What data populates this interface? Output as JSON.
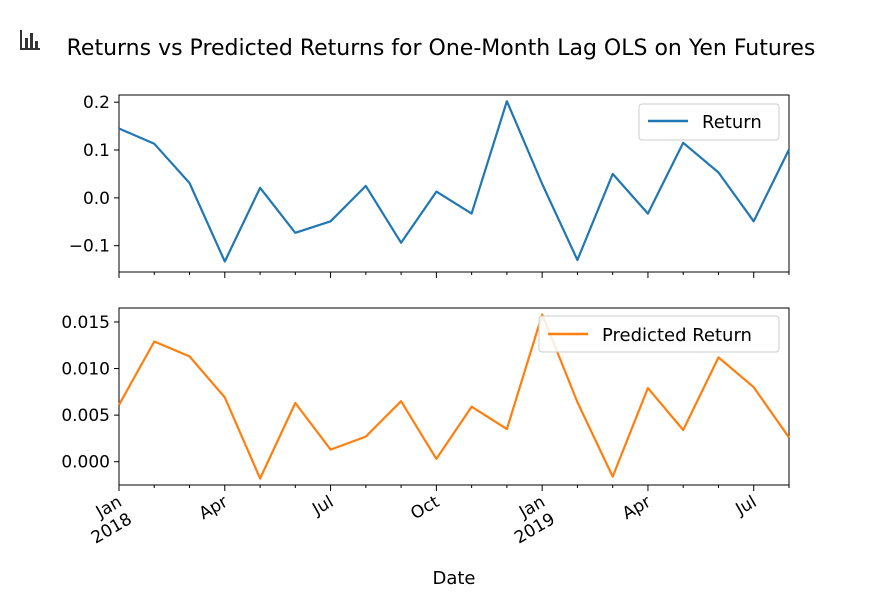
{
  "figure": {
    "title": "Returns vs Predicted Returns for One-Month Lag OLS on Yen Futures",
    "icon": "bar-chart-icon"
  },
  "chart_data": [
    {
      "type": "line",
      "x": [
        "2018-01",
        "2018-02",
        "2018-03",
        "2018-04",
        "2018-05",
        "2018-06",
        "2018-07",
        "2018-08",
        "2018-09",
        "2018-10",
        "2018-11",
        "2018-12",
        "2019-01",
        "2019-02",
        "2019-03",
        "2019-04",
        "2019-05",
        "2019-06",
        "2019-07",
        "2019-08"
      ],
      "series": [
        {
          "name": "Return",
          "color": "#1f77b4",
          "values": [
            0.145,
            0.113,
            0.031,
            -0.133,
            0.021,
            -0.073,
            -0.049,
            0.025,
            -0.094,
            0.013,
            -0.033,
            0.202,
            0.029,
            -0.13,
            0.05,
            -0.033,
            0.115,
            0.053,
            -0.049,
            0.101
          ]
        }
      ],
      "ylim": [
        -0.155,
        0.215
      ],
      "yticks": [
        {
          "value": 0.2,
          "label": "0.2"
        },
        {
          "value": 0.1,
          "label": "0.1"
        },
        {
          "value": 0.0,
          "label": "0.0"
        },
        {
          "value": -0.1,
          "label": "−0.1"
        }
      ],
      "xlabel": "",
      "ylabel": "",
      "legend_position": "upper right",
      "grid": false
    },
    {
      "type": "line",
      "x": [
        "2018-01",
        "2018-02",
        "2018-03",
        "2018-04",
        "2018-05",
        "2018-06",
        "2018-07",
        "2018-08",
        "2018-09",
        "2018-10",
        "2018-11",
        "2018-12",
        "2019-01",
        "2019-02",
        "2019-03",
        "2019-04",
        "2019-05",
        "2019-06",
        "2019-07",
        "2019-08"
      ],
      "series": [
        {
          "name": "Predicted Return",
          "color": "#ff7f0e",
          "values": [
            0.0061,
            0.0129,
            0.0113,
            0.0069,
            -0.0018,
            0.0063,
            0.0013,
            0.0027,
            0.0065,
            0.0003,
            0.0059,
            0.0035,
            0.0158,
            0.0064,
            -0.0016,
            0.0079,
            0.0034,
            0.0112,
            0.008,
            0.0026
          ]
        }
      ],
      "ylim": [
        -0.0025,
        0.0165
      ],
      "yticks": [
        {
          "value": 0.015,
          "label": "0.015"
        },
        {
          "value": 0.01,
          "label": "0.010"
        },
        {
          "value": 0.005,
          "label": "0.005"
        },
        {
          "value": 0.0,
          "label": "0.000"
        }
      ],
      "xlabel": "Date",
      "ylabel": "",
      "xticks": [
        {
          "index": 0,
          "label": "Jan",
          "sublabel": "2018"
        },
        {
          "index": 3,
          "label": "Apr",
          "sublabel": ""
        },
        {
          "index": 6,
          "label": "Jul",
          "sublabel": ""
        },
        {
          "index": 9,
          "label": "Oct",
          "sublabel": ""
        },
        {
          "index": 12,
          "label": "Jan",
          "sublabel": "2019"
        },
        {
          "index": 15,
          "label": "Apr",
          "sublabel": ""
        },
        {
          "index": 18,
          "label": "Jul",
          "sublabel": ""
        }
      ],
      "legend_position": "upper right",
      "grid": false
    }
  ]
}
